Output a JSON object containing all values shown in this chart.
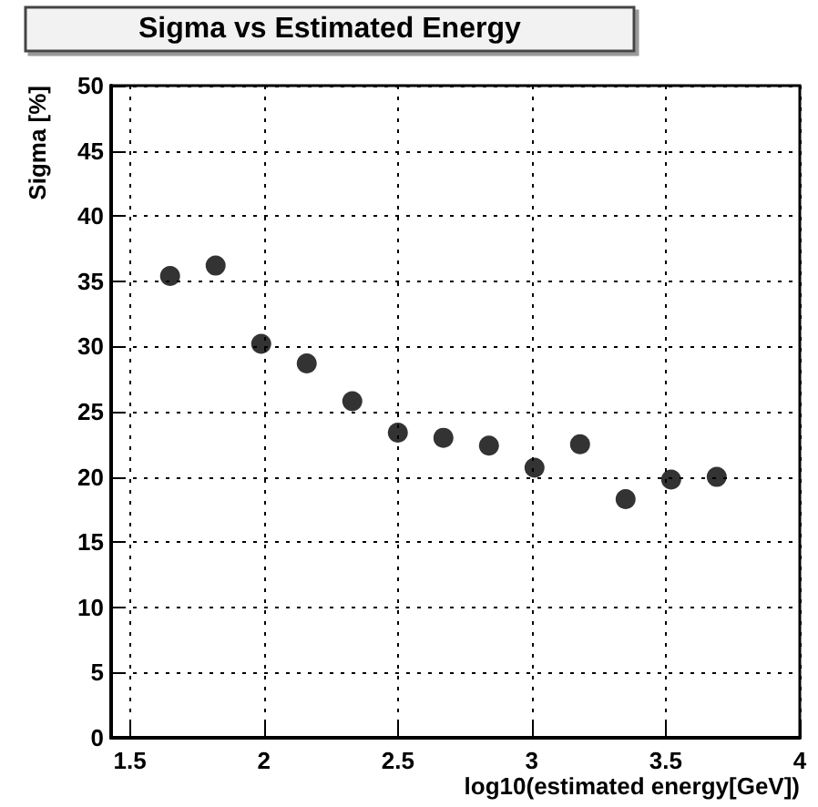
{
  "chart_data": {
    "type": "scatter",
    "title": "Sigma vs Estimated Energy",
    "xlabel": "log10(estimated energy[GeV])",
    "ylabel": "Sigma [%]",
    "x": [
      1.65,
      1.82,
      1.99,
      2.16,
      2.33,
      2.5,
      2.67,
      2.84,
      3.01,
      3.18,
      3.35,
      3.52,
      3.69
    ],
    "values": [
      35.4,
      36.2,
      30.2,
      28.7,
      25.8,
      23.4,
      23.0,
      22.4,
      20.7,
      22.5,
      18.3,
      19.8,
      20.0
    ],
    "color": "#000000",
    "marker": "circle",
    "xlim": [
      1.43,
      4
    ],
    "xticks": [
      1.5,
      2,
      2.5,
      3,
      3.5,
      4
    ],
    "ylim": [
      0,
      50
    ],
    "yticks": [
      0,
      5,
      10,
      15,
      20,
      25,
      30,
      35,
      40,
      45,
      50
    ],
    "grid": true
  }
}
